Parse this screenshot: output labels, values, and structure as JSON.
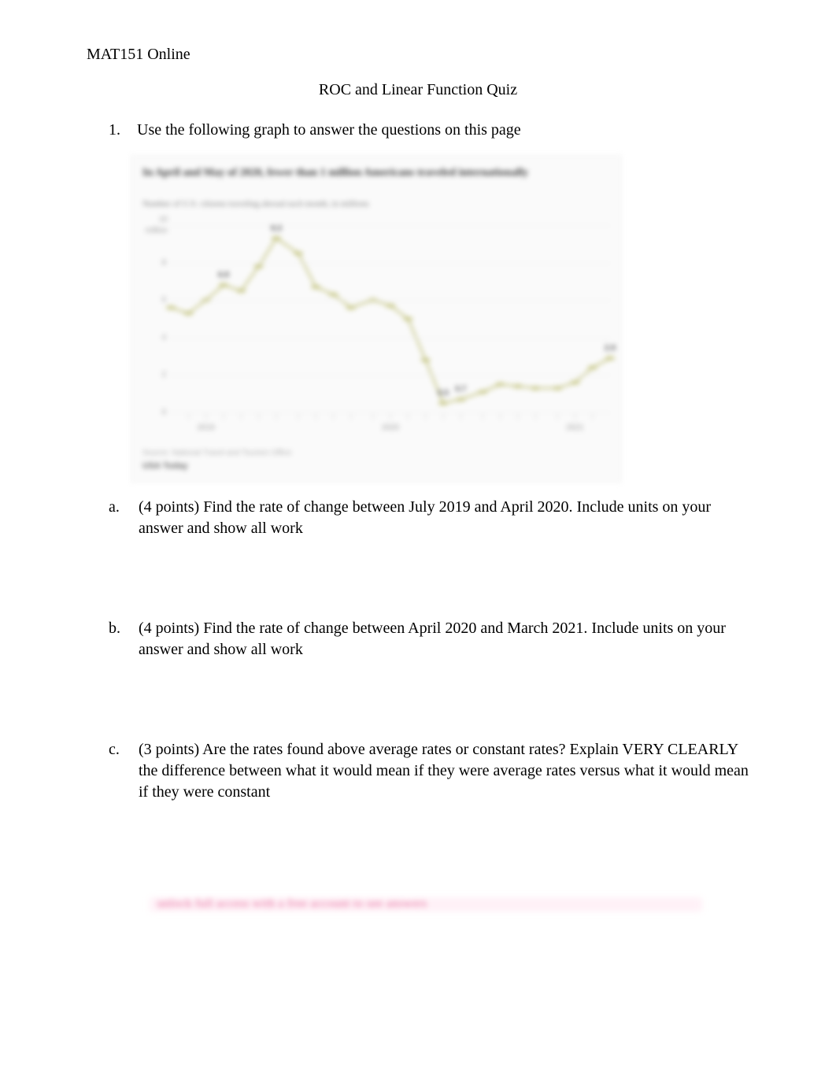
{
  "header": "MAT151 Online",
  "title": "ROC and Linear Function Quiz",
  "q1": {
    "num": "1.",
    "text": "Use the following graph to answer the questions on this page"
  },
  "chart": {
    "type": "line",
    "title_line1": "In April and May of 2020, fewer than 1 million Americans traveled internationally",
    "subtitle": "Number of U.S. citizens traveling abroad each month, in millions",
    "footer_source": "Source: National Travel and Tourism Office",
    "footer_brand": "USA Today",
    "background_color": "#fafafa",
    "line_color": "#c9c98b",
    "line_width": 2.5,
    "marker_color": "#c9c98b",
    "grid_color": "#eeeeee",
    "title_color": "#3a3a3a",
    "subtitle_color": "#7a7a7a",
    "axis_label_color": "#9a9a9a",
    "point_label_color": "#5a5a5a",
    "title_fontsize": 14,
    "subtitle_fontsize": 11,
    "axis_fontsize": 10,
    "ylim": [
      0,
      10
    ],
    "ytick_step": 2,
    "y_ticks": [
      0,
      2,
      4,
      6,
      8
    ],
    "y_top_label": "10 million",
    "x_year_labels": [
      {
        "label": "2019",
        "xpct": 8
      },
      {
        "label": "2020",
        "xpct": 50
      },
      {
        "label": "2021",
        "xpct": 92
      }
    ],
    "x_month_ticks": [
      4,
      8,
      12,
      16,
      20,
      24,
      29,
      33,
      37,
      41,
      46,
      50,
      54,
      58,
      62,
      66,
      71,
      75,
      79,
      83,
      88,
      92,
      96
    ],
    "series": [
      {
        "x": 0,
        "y": 5.6,
        "label": ""
      },
      {
        "x": 4,
        "y": 5.3,
        "label": ""
      },
      {
        "x": 8,
        "y": 6.0,
        "label": ""
      },
      {
        "x": 12,
        "y": 6.8,
        "label": "6.8"
      },
      {
        "x": 16,
        "y": 6.5,
        "label": ""
      },
      {
        "x": 20,
        "y": 7.8,
        "label": ""
      },
      {
        "x": 24,
        "y": 9.3,
        "label": "9.3"
      },
      {
        "x": 29,
        "y": 8.5,
        "label": ""
      },
      {
        "x": 33,
        "y": 6.7,
        "label": ""
      },
      {
        "x": 37,
        "y": 6.3,
        "label": ""
      },
      {
        "x": 41,
        "y": 5.6,
        "label": ""
      },
      {
        "x": 46,
        "y": 6.0,
        "label": ""
      },
      {
        "x": 50,
        "y": 5.7,
        "label": ""
      },
      {
        "x": 54,
        "y": 5.0,
        "label": ""
      },
      {
        "x": 58,
        "y": 2.8,
        "label": ""
      },
      {
        "x": 62,
        "y": 0.5,
        "label": "0.5"
      },
      {
        "x": 66,
        "y": 0.7,
        "label": "0.7"
      },
      {
        "x": 71,
        "y": 1.1,
        "label": ""
      },
      {
        "x": 75,
        "y": 1.5,
        "label": ""
      },
      {
        "x": 79,
        "y": 1.4,
        "label": ""
      },
      {
        "x": 83,
        "y": 1.3,
        "label": ""
      },
      {
        "x": 88,
        "y": 1.3,
        "label": ""
      },
      {
        "x": 92,
        "y": 1.6,
        "label": ""
      },
      {
        "x": 96,
        "y": 2.4,
        "label": ""
      },
      {
        "x": 100,
        "y": 2.9,
        "label": "2.9"
      }
    ]
  },
  "a": {
    "letter": "a.",
    "text": "(4 points) Find the rate of change between July 2019 and April 2020. Include units on your answer and show all work"
  },
  "b": {
    "letter": "b.",
    "text": "(4 points) Find the rate of change between April 2020 and March 2021. Include units on your answer and show all work"
  },
  "c": {
    "letter": "c.",
    "text": "(3 points) Are the rates found above average rates or constant rates? Explain VERY CLEARLY the difference between what it would mean if they were average rates versus what it would mean if they were constant"
  },
  "footer_hidden": "unlock full access with a free account to see answers"
}
